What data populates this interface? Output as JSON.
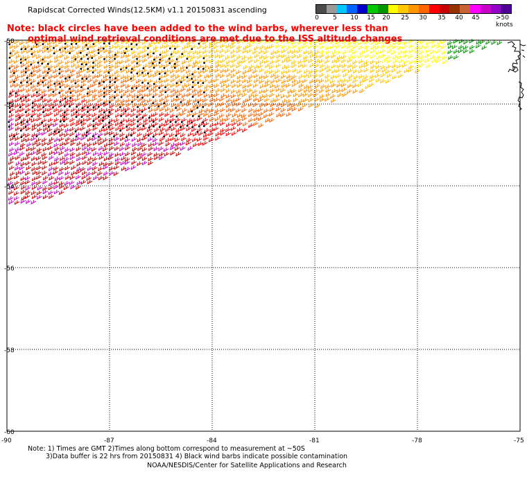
{
  "header": {
    "title": "Rapidscat Corrected Winds(12.5KM) v1.1 20150831 ascending"
  },
  "colorbar": {
    "colors": [
      "#4a4a4a",
      "#9a9a9a",
      "#00c8ff",
      "#0064ff",
      "#0000c8",
      "#00c800",
      "#009600",
      "#ffff00",
      "#ffc800",
      "#ff9600",
      "#ff6400",
      "#ff0000",
      "#c80000",
      "#963200",
      "#c86432",
      "#ff00ff",
      "#c800c8",
      "#9600c8",
      "#500096"
    ],
    "labels": [
      "0",
      "5",
      "10",
      "15",
      "20",
      "25",
      "30",
      "35",
      "40",
      "45",
      ">50 knots"
    ]
  },
  "note": {
    "line1": "Note: black circles have been added to the wind barbs, wherever less than",
    "line2": "optimal wind retrieval conditions are met due to the ISS altitude changes"
  },
  "map": {
    "y_ticks": [
      "-50",
      "-52",
      "-54",
      "-56",
      "-58",
      "-60"
    ],
    "x_ticks": [
      "-90",
      "-87",
      "-84",
      "-81",
      "-78",
      "-75"
    ],
    "lat_range": [
      -60,
      -50
    ],
    "lon_range": [
      -90,
      -75
    ],
    "grid": "dotted"
  },
  "footer": {
    "line1": "Note: 1) Times are GMT 2)Times along bottom correspond to measurement at ~50S",
    "line2": "3)Data buffer is 22 hrs from 20150831 4) Black wind barbs indicate possible contamination",
    "line3": "NOAA/NESDIS/Center for Satellite Applications and Research"
  }
}
